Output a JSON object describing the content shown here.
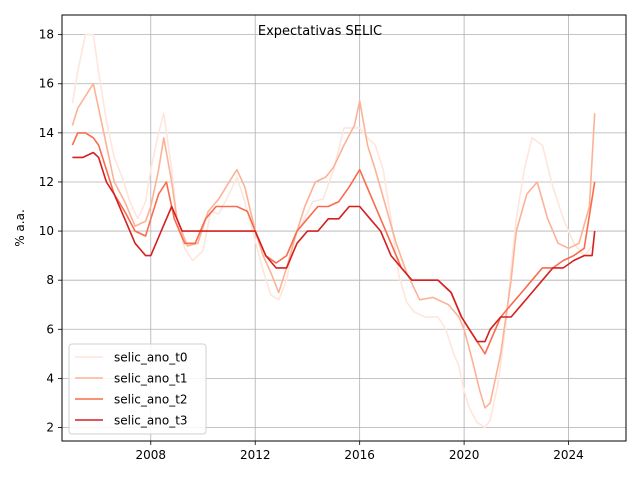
{
  "chart_data": {
    "type": "line",
    "title": "Expectativas SELIC",
    "xlabel": "",
    "ylabel": "% a.a.",
    "xlim": [
      2004.6,
      2026.2
    ],
    "ylim": [
      1.45,
      18.8
    ],
    "xticks": [
      2008,
      2012,
      2016,
      2020,
      2024
    ],
    "yticks": [
      2,
      4,
      6,
      8,
      10,
      12,
      14,
      16,
      18
    ],
    "grid": true,
    "legend_position": "lower-left",
    "series": [
      {
        "name": "selic_ano_t0",
        "color": "#fee6dc",
        "x": [
          2005.0,
          2005.2,
          2005.5,
          2005.8,
          2006.0,
          2006.3,
          2006.6,
          2006.9,
          2007.2,
          2007.5,
          2007.8,
          2008.0,
          2008.3,
          2008.5,
          2008.8,
          2009.0,
          2009.3,
          2009.6,
          2010.0,
          2010.3,
          2010.6,
          2011.0,
          2011.3,
          2011.6,
          2012.0,
          2012.3,
          2012.6,
          2012.9,
          2013.2,
          2013.5,
          2013.8,
          2014.2,
          2014.6,
          2015.0,
          2015.4,
          2015.8,
          2016.0,
          2016.3,
          2016.6,
          2016.9,
          2017.2,
          2017.5,
          2017.8,
          2018.1,
          2018.5,
          2019.0,
          2019.3,
          2019.6,
          2019.8,
          2020.0,
          2020.2,
          2020.5,
          2020.8,
          2021.0,
          2021.3,
          2021.6,
          2021.8,
          2022.0,
          2022.3,
          2022.6,
          2023.0,
          2023.4,
          2023.8,
          2024.2,
          2024.6,
          2025.0
        ],
        "y": [
          15.2,
          16.5,
          18.0,
          18.0,
          16.5,
          14.5,
          13.0,
          12.2,
          11.2,
          10.5,
          11.2,
          12.5,
          14.0,
          14.8,
          12.5,
          10.5,
          9.3,
          8.8,
          9.2,
          10.8,
          10.7,
          11.5,
          12.2,
          11.2,
          9.6,
          8.4,
          7.4,
          7.2,
          8.0,
          9.8,
          10.3,
          11.2,
          11.3,
          12.5,
          14.2,
          14.2,
          14.2,
          13.8,
          13.5,
          12.5,
          10.5,
          8.2,
          7.1,
          6.7,
          6.5,
          6.5,
          6.0,
          5.0,
          4.5,
          3.5,
          2.8,
          2.2,
          2.0,
          2.3,
          3.8,
          6.2,
          8.5,
          10.5,
          12.5,
          13.8,
          13.5,
          11.8,
          10.5,
          9.5,
          9.0,
          9.5
        ]
      },
      {
        "name": "selic_ano_t1",
        "color": "#fcb296",
        "x": [
          2005.0,
          2005.2,
          2005.5,
          2005.8,
          2006.0,
          2006.3,
          2006.6,
          2007.0,
          2007.4,
          2007.8,
          2008.0,
          2008.3,
          2008.5,
          2008.8,
          2009.0,
          2009.4,
          2009.8,
          2010.2,
          2010.6,
          2011.0,
          2011.3,
          2011.6,
          2012.0,
          2012.3,
          2012.6,
          2012.9,
          2013.2,
          2013.6,
          2013.9,
          2014.3,
          2014.7,
          2015.0,
          2015.4,
          2015.8,
          2016.0,
          2016.3,
          2016.6,
          2017.0,
          2017.4,
          2017.8,
          2018.3,
          2018.8,
          2019.4,
          2019.8,
          2020.0,
          2020.3,
          2020.6,
          2020.8,
          2021.0,
          2021.4,
          2021.8,
          2022.0,
          2022.4,
          2022.8,
          2023.2,
          2023.6,
          2024.0,
          2024.4,
          2024.8,
          2025.0
        ],
        "y": [
          14.3,
          15.0,
          15.5,
          16.0,
          15.0,
          13.5,
          12.0,
          11.2,
          10.2,
          10.4,
          11.0,
          12.5,
          13.8,
          12.0,
          10.5,
          9.4,
          9.5,
          10.8,
          11.3,
          12.0,
          12.5,
          11.8,
          10.0,
          9.0,
          8.3,
          7.5,
          8.5,
          10.0,
          11.0,
          12.0,
          12.2,
          12.6,
          13.5,
          14.3,
          15.3,
          13.5,
          12.5,
          11.0,
          9.5,
          8.3,
          7.2,
          7.3,
          7.0,
          6.5,
          6.0,
          4.8,
          3.5,
          2.8,
          3.0,
          5.0,
          8.0,
          10.0,
          11.5,
          12.0,
          10.5,
          9.5,
          9.3,
          9.5,
          11.0,
          14.8
        ]
      },
      {
        "name": "selic_ano_t2",
        "color": "#f96c4d",
        "x": [
          2005.0,
          2005.2,
          2005.5,
          2005.8,
          2006.0,
          2006.3,
          2006.6,
          2007.0,
          2007.4,
          2007.8,
          2008.0,
          2008.3,
          2008.6,
          2008.9,
          2009.3,
          2009.7,
          2010.1,
          2010.5,
          2010.9,
          2011.3,
          2011.7,
          2012.0,
          2012.4,
          2012.8,
          2013.2,
          2013.6,
          2014.0,
          2014.4,
          2014.8,
          2015.2,
          2015.6,
          2016.0,
          2016.4,
          2016.8,
          2017.2,
          2017.6,
          2018.0,
          2018.5,
          2019.0,
          2019.5,
          2019.9,
          2020.2,
          2020.5,
          2020.8,
          2021.0,
          2021.4,
          2021.8,
          2022.2,
          2022.6,
          2023.0,
          2023.4,
          2023.8,
          2024.2,
          2024.6,
          2025.0
        ],
        "y": [
          13.5,
          14.0,
          14.0,
          13.8,
          13.5,
          12.5,
          11.5,
          10.8,
          10.0,
          9.8,
          10.5,
          11.5,
          12.0,
          10.5,
          9.5,
          9.5,
          10.5,
          11.0,
          11.0,
          11.0,
          10.8,
          10.0,
          9.0,
          8.7,
          9.0,
          10.0,
          10.5,
          11.0,
          11.0,
          11.2,
          11.8,
          12.5,
          11.5,
          10.5,
          9.5,
          8.5,
          8.0,
          8.0,
          8.0,
          7.5,
          6.5,
          6.0,
          5.5,
          5.0,
          5.5,
          6.5,
          7.0,
          7.5,
          8.0,
          8.5,
          8.5,
          8.8,
          9.0,
          9.3,
          12.0
        ]
      },
      {
        "name": "selic_ano_t3",
        "color": "#d42020",
        "x": [
          2005.0,
          2005.4,
          2005.8,
          2006.0,
          2006.3,
          2006.6,
          2007.0,
          2007.4,
          2007.8,
          2008.0,
          2008.4,
          2008.8,
          2009.2,
          2009.6,
          2010.0,
          2010.4,
          2010.8,
          2011.2,
          2011.6,
          2012.0,
          2012.4,
          2012.8,
          2013.2,
          2013.6,
          2014.0,
          2014.4,
          2014.8,
          2015.2,
          2015.6,
          2016.0,
          2016.4,
          2016.8,
          2017.2,
          2017.6,
          2018.0,
          2018.5,
          2019.0,
          2019.5,
          2019.9,
          2020.2,
          2020.5,
          2020.8,
          2021.0,
          2021.4,
          2021.8,
          2022.2,
          2022.6,
          2023.0,
          2023.4,
          2023.8,
          2024.2,
          2024.6,
          2024.9,
          2025.0
        ],
        "y": [
          13.0,
          13.0,
          13.2,
          13.0,
          12.0,
          11.5,
          10.5,
          9.5,
          9.0,
          9.0,
          10.0,
          11.0,
          10.0,
          10.0,
          10.0,
          10.0,
          10.0,
          10.0,
          10.0,
          10.0,
          9.0,
          8.5,
          8.5,
          9.5,
          10.0,
          10.0,
          10.5,
          10.5,
          11.0,
          11.0,
          10.5,
          10.0,
          9.0,
          8.5,
          8.0,
          8.0,
          8.0,
          7.5,
          6.5,
          6.0,
          5.5,
          5.5,
          6.0,
          6.5,
          6.5,
          7.0,
          7.5,
          8.0,
          8.5,
          8.5,
          8.8,
          9.0,
          9.0,
          10.0
        ]
      }
    ]
  }
}
